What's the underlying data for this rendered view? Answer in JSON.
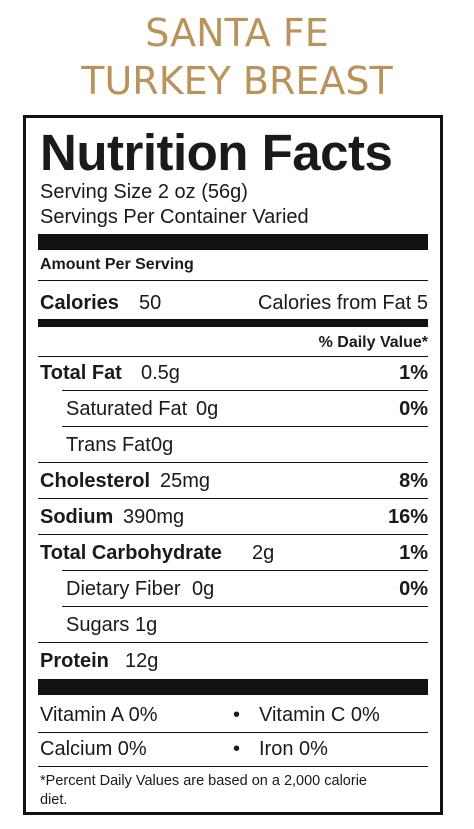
{
  "product": {
    "line1": "SANTA FE",
    "line2": "TURKEY BREAST"
  },
  "label": {
    "title": "Nutrition Facts",
    "serving_size": "Serving Size 2 oz (56g)",
    "servings_per_container": "Servings Per Container Varied",
    "amount_per_serving": "Amount Per Serving",
    "calories_label": "Calories",
    "calories_value": "50",
    "calories_from_fat": "Calories from Fat 5",
    "daily_value_header": "% Daily Value*",
    "rows": [
      {
        "name": "Total Fat",
        "amount": "0.5g",
        "dv": "1%"
      },
      {
        "name": "Saturated Fat",
        "amount": "0g",
        "dv": "0%"
      },
      {
        "name": "Trans Fat",
        "amount": "0g",
        "dv": ""
      },
      {
        "name": "Cholesterol",
        "amount": "25mg",
        "dv": "8%"
      },
      {
        "name": "Sodium",
        "amount": "390mg",
        "dv": "16%"
      },
      {
        "name": "Total Carbohydrate",
        "amount": "2g",
        "dv": "1%"
      },
      {
        "name": "Dietary Fiber",
        "amount": "0g",
        "dv": "0%"
      },
      {
        "name": "Sugars",
        "amount": "1g",
        "dv": ""
      },
      {
        "name": "Protein",
        "amount": "12g",
        "dv": ""
      }
    ],
    "vitamins": [
      {
        "left": "Vitamin A 0%",
        "right": "Vitamin C 0%"
      },
      {
        "left": "Calcium 0%",
        "right": "Iron 0%"
      }
    ],
    "bullet": "•",
    "footnote_line1": "*Percent Daily Values are based on a 2,000 calorie",
    "footnote_line2": "diet."
  }
}
